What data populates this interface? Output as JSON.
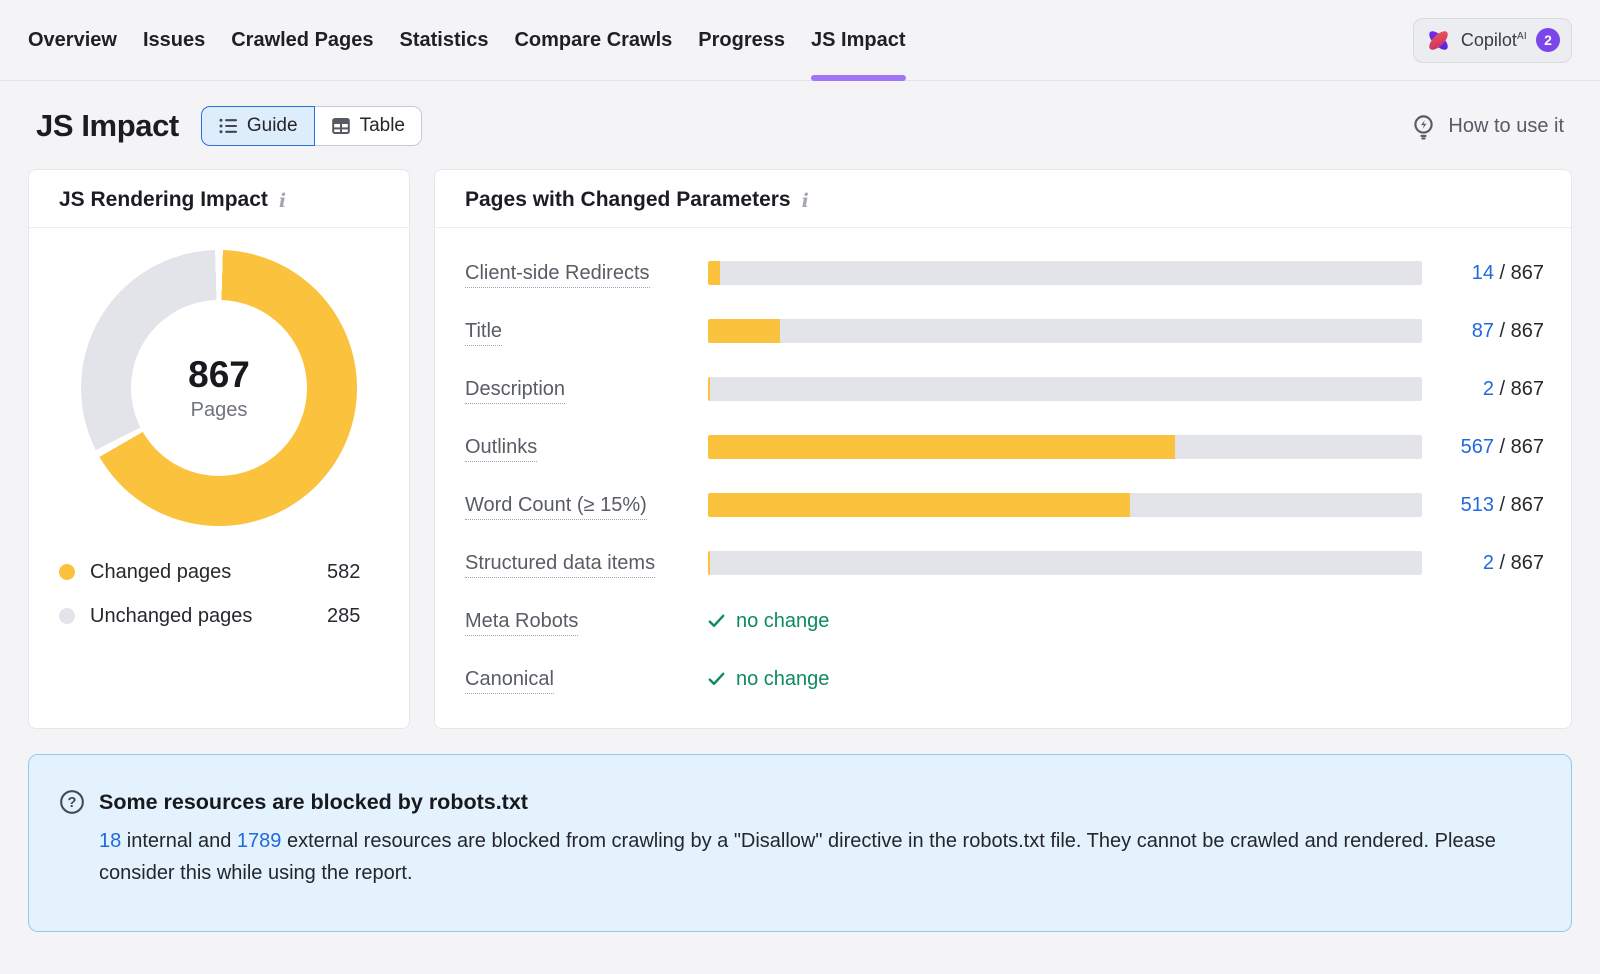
{
  "nav": {
    "items": [
      {
        "label": "Overview",
        "active": false
      },
      {
        "label": "Issues",
        "active": false
      },
      {
        "label": "Crawled Pages",
        "active": false
      },
      {
        "label": "Statistics",
        "active": false
      },
      {
        "label": "Compare Crawls",
        "active": false
      },
      {
        "label": "Progress",
        "active": false
      },
      {
        "label": "JS Impact",
        "active": true
      }
    ],
    "copilot": {
      "label": "Copilot",
      "sup": "AI",
      "badge": "2"
    }
  },
  "header": {
    "title": "JS Impact",
    "view_toggle": {
      "guide": "Guide",
      "table": "Table"
    },
    "help_link": "How to use it"
  },
  "rendering_impact": {
    "title": "JS Rendering Impact",
    "total": "867",
    "total_label": "Pages",
    "legend": [
      {
        "label": "Changed pages",
        "value": 582,
        "color": "#FAC23D"
      },
      {
        "label": "Unchanged pages",
        "value": 285,
        "color": "#E3E4EA"
      }
    ]
  },
  "changed_parameters": {
    "title": "Pages with Changed Parameters",
    "total": 867,
    "rows": [
      {
        "label": "Client-side Redirects",
        "type": "bar",
        "value": 14
      },
      {
        "label": "Title",
        "type": "bar",
        "value": 87
      },
      {
        "label": "Description",
        "type": "bar",
        "value": 2
      },
      {
        "label": "Outlinks",
        "type": "bar",
        "value": 567
      },
      {
        "label": "Word Count (≥ 15%)",
        "type": "bar",
        "value": 513
      },
      {
        "label": "Structured data items",
        "type": "bar",
        "value": 2
      },
      {
        "label": "Meta Robots",
        "type": "check",
        "status": "no change"
      },
      {
        "label": "Canonical",
        "type": "check",
        "status": "no change"
      }
    ]
  },
  "notice": {
    "title": "Some resources are blocked by robots.txt",
    "internal_link": "18",
    "body_1": " internal and ",
    "external_link": "1789",
    "body_2": " external resources are blocked from crawling by a \"Disallow\" directive in the robots.txt file. They cannot be crawled and rendered. Please consider this while using the report."
  },
  "colors": {
    "accent_purple": "#A175F5",
    "chart_yellow": "#FAC23D",
    "chart_gray": "#E3E4EA",
    "link_blue": "#2268DF",
    "success_green": "#0E8A63",
    "notice_bg": "#E3F2FC",
    "notice_border": "#90CBEF"
  },
  "icons": {
    "copilot_logo": "copilot-logo-icon",
    "guide": "list-icon",
    "table": "table-icon",
    "help": "lightbulb-icon",
    "info": "info-icon",
    "check": "check-icon",
    "notice": "question-circle-icon"
  }
}
